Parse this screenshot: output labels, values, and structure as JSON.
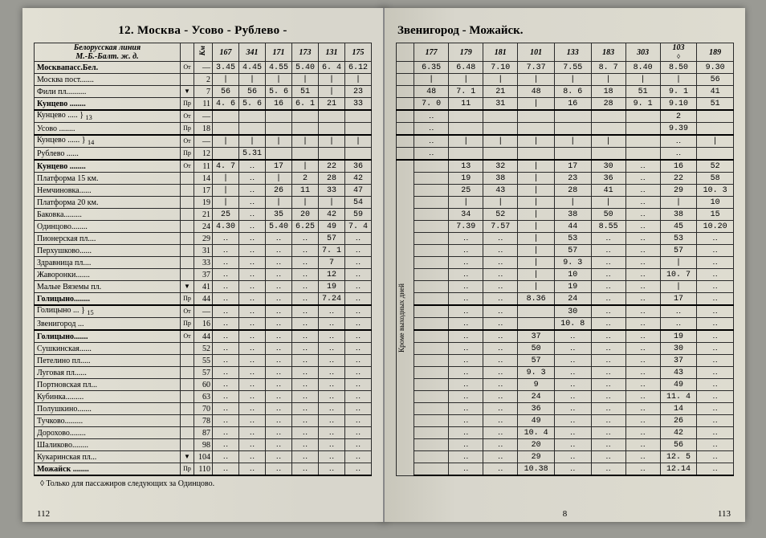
{
  "meta": {
    "title_left": "12. Москва - Усово - Рублево -",
    "title_right": "Звенигород - Можайск.",
    "corner_label": "Белорусская линия\nМ.-Б.-Балт. ж. д.",
    "km_label": "Км",
    "vertical_note": "Кроме выходных дней",
    "footnote": "◊ Только для пассажиров следующих за Одинцово.",
    "page_left": "112",
    "page_right": "113",
    "signature": "8",
    "col103_marker": "◊"
  },
  "trains_left": [
    "167",
    "341",
    "171",
    "173",
    "131",
    "175"
  ],
  "trains_right": [
    "177",
    "179",
    "181",
    "101",
    "133",
    "183",
    "303",
    "103",
    "189"
  ],
  "stations": [
    {
      "n": "Москвапасс.Бел.",
      "m": "От",
      "km": "—",
      "b": 1,
      "l": [
        "3.45",
        "4.45",
        "4.55",
        "5.40",
        "6. 4",
        "6.12"
      ],
      "r": [
        "6.35",
        "6.48",
        "7.10",
        "7.37",
        "7.55",
        "8. 7",
        "8.40",
        "8.50",
        "9.30"
      ]
    },
    {
      "n": "Москва пост.......",
      "m": "",
      "km": "2",
      "l": [
        "|",
        "|",
        "|",
        "|",
        "|",
        "|"
      ],
      "r": [
        "|",
        "|",
        "|",
        "|",
        "|",
        "|",
        "|",
        "|",
        "56"
      ]
    },
    {
      "n": "Фили пл..........",
      "m": "▼",
      "km": "7",
      "l": [
        "56",
        "56",
        "5. 6",
        "51",
        "|",
        "23"
      ],
      "r": [
        "48",
        "7. 1",
        "21",
        "48",
        "8. 6",
        "18",
        "51",
        "9. 1",
        "41"
      ]
    },
    {
      "n": "Кунцево ........",
      "m": "Пр",
      "km": "11",
      "b": 1,
      "l": [
        "4. 6",
        "5. 6",
        "16",
        "6. 1",
        "21",
        "33"
      ],
      "r": [
        "7. 0",
        "11",
        "31",
        "|",
        "16",
        "28",
        "9. 1",
        "9.10",
        "51"
      ]
    },
    {
      "n": "Кунцево ..... } <sub>13</sub>",
      "m": "От",
      "km": "—",
      "sep": 1,
      "l": [
        "",
        "",
        "",
        "",
        "",
        ""
      ],
      "r": [
        "‥",
        "",
        "",
        "",
        "",
        "",
        "",
        "2",
        ""
      ]
    },
    {
      "n": "Усово ........",
      "m": "Пр",
      "km": "18",
      "l": [
        "",
        "",
        "",
        "",
        "",
        ""
      ],
      "r": [
        "‥",
        "",
        "",
        "",
        "",
        "",
        "",
        "9.39",
        ""
      ]
    },
    {
      "n": "Кунцево ...... } <sub>14</sub>",
      "m": "От",
      "km": "—",
      "sep": 1,
      "l": [
        "|",
        "|",
        "|",
        "|",
        "|",
        "|"
      ],
      "r": [
        "‥",
        "|",
        "|",
        "|",
        "|",
        "|",
        "",
        "‥",
        "|"
      ]
    },
    {
      "n": "Рублево ......",
      "m": "Пр",
      "km": "12",
      "l": [
        "",
        "5.31",
        "",
        "",
        "",
        ""
      ],
      "r": [
        "‥",
        "",
        "",
        "",
        "",
        "",
        "",
        "‥",
        ""
      ]
    },
    {
      "n": "Кунцево ........",
      "m": "От",
      "km": "11",
      "b": 1,
      "sep": 1,
      "l": [
        "4. 7",
        "‥",
        "17",
        "|",
        "22",
        "36"
      ],
      "r": [
        "",
        "13",
        "32",
        "|",
        "17",
        "30",
        "‥",
        "16",
        "52"
      ]
    },
    {
      "n": "Платформа 15 км.",
      "m": "",
      "km": "14",
      "l": [
        "|",
        "‥",
        "|",
        "2",
        "28",
        "42"
      ],
      "r": [
        "",
        "19",
        "38",
        "|",
        "23",
        "36",
        "‥",
        "22",
        "58"
      ]
    },
    {
      "n": "Немчиновка......",
      "m": "",
      "km": "17",
      "l": [
        "|",
        "‥",
        "26",
        "11",
        "33",
        "47"
      ],
      "r": [
        "",
        "25",
        "43",
        "|",
        "28",
        "41",
        "‥",
        "29",
        "10. 3"
      ]
    },
    {
      "n": "Платформа 20 км.",
      "m": "",
      "km": "19",
      "l": [
        "|",
        "‥",
        "|",
        "|",
        "|",
        "54"
      ],
      "r": [
        "",
        "|",
        "|",
        "|",
        "|",
        "|",
        "‥",
        "|",
        "10"
      ]
    },
    {
      "n": "Баковка.........",
      "m": "",
      "km": "21",
      "l": [
        "25",
        "‥",
        "35",
        "20",
        "42",
        "59"
      ],
      "r": [
        "",
        "34",
        "52",
        "|",
        "38",
        "50",
        "‥",
        "38",
        "15"
      ]
    },
    {
      "n": "Одинцово........",
      "m": "",
      "km": "24",
      "l": [
        "4.30",
        "‥",
        "5.40",
        "6.25",
        "49",
        "7. 4"
      ],
      "r": [
        "",
        "7.39",
        "7.57",
        "|",
        "44",
        "8.55",
        "‥",
        "45",
        "10.20"
      ]
    },
    {
      "n": "Пионерская пл....",
      "m": "",
      "km": "29",
      "l": [
        "‥",
        "‥",
        "‥",
        "‥",
        "57",
        "‥"
      ],
      "r": [
        "",
        "‥",
        "‥",
        "|",
        "53",
        "‥",
        "‥",
        "53",
        "‥"
      ]
    },
    {
      "n": "Перхушково......",
      "m": "",
      "km": "31",
      "l": [
        "‥",
        "‥",
        "‥",
        "‥",
        "7. 1",
        "‥"
      ],
      "r": [
        "",
        "‥",
        "‥",
        "|",
        "57",
        "‥",
        "‥",
        "57",
        "‥"
      ]
    },
    {
      "n": "Здравница пл....",
      "m": "",
      "km": "33",
      "l": [
        "‥",
        "‥",
        "‥",
        "‥",
        "7",
        "‥"
      ],
      "r": [
        "",
        "‥",
        "‥",
        "|",
        "9. 3",
        "‥",
        "‥",
        "|",
        "‥"
      ]
    },
    {
      "n": "Жаворонки.......",
      "m": "",
      "km": "37",
      "l": [
        "‥",
        "‥",
        "‥",
        "‥",
        "12",
        "‥"
      ],
      "r": [
        "",
        "‥",
        "‥",
        "|",
        "10",
        "‥",
        "‥",
        "10. 7",
        "‥"
      ]
    },
    {
      "n": "Малые Вяземы пл.",
      "m": "▼",
      "km": "41",
      "l": [
        "‥",
        "‥",
        "‥",
        "‥",
        "19",
        "‥"
      ],
      "r": [
        "",
        "‥",
        "‥",
        "|",
        "19",
        "‥",
        "‥",
        "|",
        "‥"
      ]
    },
    {
      "n": "Голицыно........",
      "m": "Пр",
      "km": "44",
      "b": 1,
      "l": [
        "‥",
        "‥",
        "‥",
        "‥",
        "7.24",
        "‥"
      ],
      "r": [
        "",
        "‥",
        "‥",
        "8.36",
        "24",
        "‥",
        "‥",
        "17",
        "‥"
      ]
    },
    {
      "n": "Голицыно ... } <sub>15</sub>",
      "m": "От",
      "km": "—",
      "sep": 1,
      "l": [
        "‥",
        "‥",
        "‥",
        "‥",
        "‥",
        "‥"
      ],
      "r": [
        "",
        "‥",
        "‥",
        "",
        "30",
        "‥",
        "‥",
        "‥",
        "‥"
      ]
    },
    {
      "n": "Звенигород ...",
      "m": "Пр",
      "km": "16",
      "l": [
        "‥",
        "‥",
        "‥",
        "‥",
        "‥",
        "‥"
      ],
      "r": [
        "",
        "‥",
        "‥",
        "",
        "10. 8",
        "‥",
        "‥",
        "‥",
        "‥"
      ]
    },
    {
      "n": "Голицыно.......",
      "m": "От",
      "km": "44",
      "b": 1,
      "sep": 1,
      "l": [
        "‥",
        "‥",
        "‥",
        "‥",
        "‥",
        "‥"
      ],
      "r": [
        "",
        "‥",
        "‥",
        "37",
        "‥",
        "‥",
        "‥",
        "19",
        "‥"
      ]
    },
    {
      "n": "Сушкинская......",
      "m": "",
      "km": "52",
      "l": [
        "‥",
        "‥",
        "‥",
        "‥",
        "‥",
        "‥"
      ],
      "r": [
        "",
        "‥",
        "‥",
        "50",
        "‥",
        "‥",
        "‥",
        "30",
        "‥"
      ]
    },
    {
      "n": "Петелино пл.....",
      "m": "",
      "km": "55",
      "l": [
        "‥",
        "‥",
        "‥",
        "‥",
        "‥",
        "‥"
      ],
      "r": [
        "",
        "‥",
        "‥",
        "57",
        "‥",
        "‥",
        "‥",
        "37",
        "‥"
      ]
    },
    {
      "n": "Луговая пл......",
      "m": "",
      "km": "57",
      "l": [
        "‥",
        "‥",
        "‥",
        "‥",
        "‥",
        "‥"
      ],
      "r": [
        "",
        "‥",
        "‥",
        "9. 3",
        "‥",
        "‥",
        "‥",
        "43",
        "‥"
      ]
    },
    {
      "n": "Портновская пл...",
      "m": "",
      "km": "60",
      "l": [
        "‥",
        "‥",
        "‥",
        "‥",
        "‥",
        "‥"
      ],
      "r": [
        "",
        "‥",
        "‥",
        "9",
        "‥",
        "‥",
        "‥",
        "49",
        "‥"
      ]
    },
    {
      "n": "Кубинка.........",
      "m": "",
      "km": "63",
      "l": [
        "‥",
        "‥",
        "‥",
        "‥",
        "‥",
        "‥"
      ],
      "r": [
        "",
        "‥",
        "‥",
        "24",
        "‥",
        "‥",
        "‥",
        "11. 4",
        "‥"
      ]
    },
    {
      "n": "Полушкино.......",
      "m": "",
      "km": "70",
      "l": [
        "‥",
        "‥",
        "‥",
        "‥",
        "‥",
        "‥"
      ],
      "r": [
        "",
        "‥",
        "‥",
        "36",
        "‥",
        "‥",
        "‥",
        "14",
        "‥"
      ]
    },
    {
      "n": "Тучково.........",
      "m": "",
      "km": "78",
      "l": [
        "‥",
        "‥",
        "‥",
        "‥",
        "‥",
        "‥"
      ],
      "r": [
        "",
        "‥",
        "‥",
        "49",
        "‥",
        "‥",
        "‥",
        "26",
        "‥"
      ]
    },
    {
      "n": "Дорохово........",
      "m": "",
      "km": "87",
      "l": [
        "‥",
        "‥",
        "‥",
        "‥",
        "‥",
        "‥"
      ],
      "r": [
        "",
        "‥",
        "‥",
        "10. 4",
        "‥",
        "‥",
        "‥",
        "42",
        "‥"
      ]
    },
    {
      "n": "Шаликово........",
      "m": "",
      "km": "98",
      "l": [
        "‥",
        "‥",
        "‥",
        "‥",
        "‥",
        "‥"
      ],
      "r": [
        "",
        "‥",
        "‥",
        "20",
        "‥",
        "‥",
        "‥",
        "56",
        "‥"
      ]
    },
    {
      "n": "Кукаринская пл...",
      "m": "▼",
      "km": "104",
      "l": [
        "‥",
        "‥",
        "‥",
        "‥",
        "‥",
        "‥"
      ],
      "r": [
        "",
        "‥",
        "‥",
        "29",
        "‥",
        "‥",
        "‥",
        "12. 5",
        "‥"
      ]
    },
    {
      "n": "Можайск ........",
      "m": "Пр",
      "km": "110",
      "b": 1,
      "sepb": 1,
      "l": [
        "‥",
        "‥",
        "‥",
        "‥",
        "‥",
        "‥"
      ],
      "r": [
        "",
        "‥",
        "‥",
        "10.38",
        "‥",
        "‥",
        "‥",
        "12.14",
        "‥"
      ]
    }
  ]
}
